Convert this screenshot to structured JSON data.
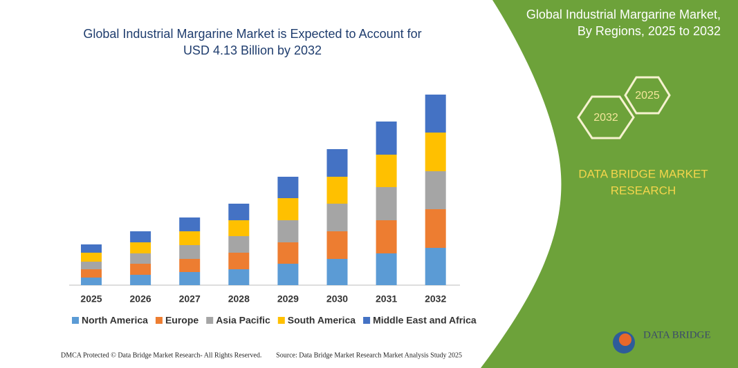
{
  "chart_data": {
    "type": "bar",
    "stacked": true,
    "title": [
      "Global Industrial Margarine Market is Expected to Account for",
      "USD 4.13 Billion by 2032"
    ],
    "categories": [
      "2025",
      "2026",
      "2027",
      "2028",
      "2029",
      "2030",
      "2031",
      "2032"
    ],
    "series": [
      {
        "name": "North America",
        "color": "#5b9bd5",
        "values": [
          11,
          15,
          19,
          23,
          31,
          38,
          46,
          54
        ]
      },
      {
        "name": "Europe",
        "color": "#ed7d31",
        "values": [
          12,
          16,
          19,
          24,
          31,
          40,
          48,
          56
        ]
      },
      {
        "name": "Asia Pacific",
        "color": "#a5a5a5",
        "values": [
          11,
          15,
          20,
          24,
          32,
          40,
          48,
          55
        ]
      },
      {
        "name": "South America",
        "color": "#ffc000",
        "values": [
          13,
          16,
          20,
          23,
          32,
          39,
          47,
          56
        ]
      },
      {
        "name": "Middle East and Africa",
        "color": "#4472c4",
        "values": [
          12,
          16,
          20,
          24,
          31,
          40,
          48,
          55
        ]
      }
    ],
    "legend": "bottom"
  },
  "panel": {
    "title": [
      "Global Industrial Margarine Market,",
      "By Regions, 2025 to 2032"
    ],
    "years": [
      "2032",
      "2025"
    ],
    "brand": [
      "DATA BRIDGE MARKET",
      "RESEARCH"
    ],
    "logo": "DATA BRIDGE"
  },
  "footer": {
    "left": "DMCA Protected © Data Bridge Market Research- All Rights Reserved.",
    "right": "Source: Data Bridge Market Research  Market Analysis Study 2025"
  }
}
